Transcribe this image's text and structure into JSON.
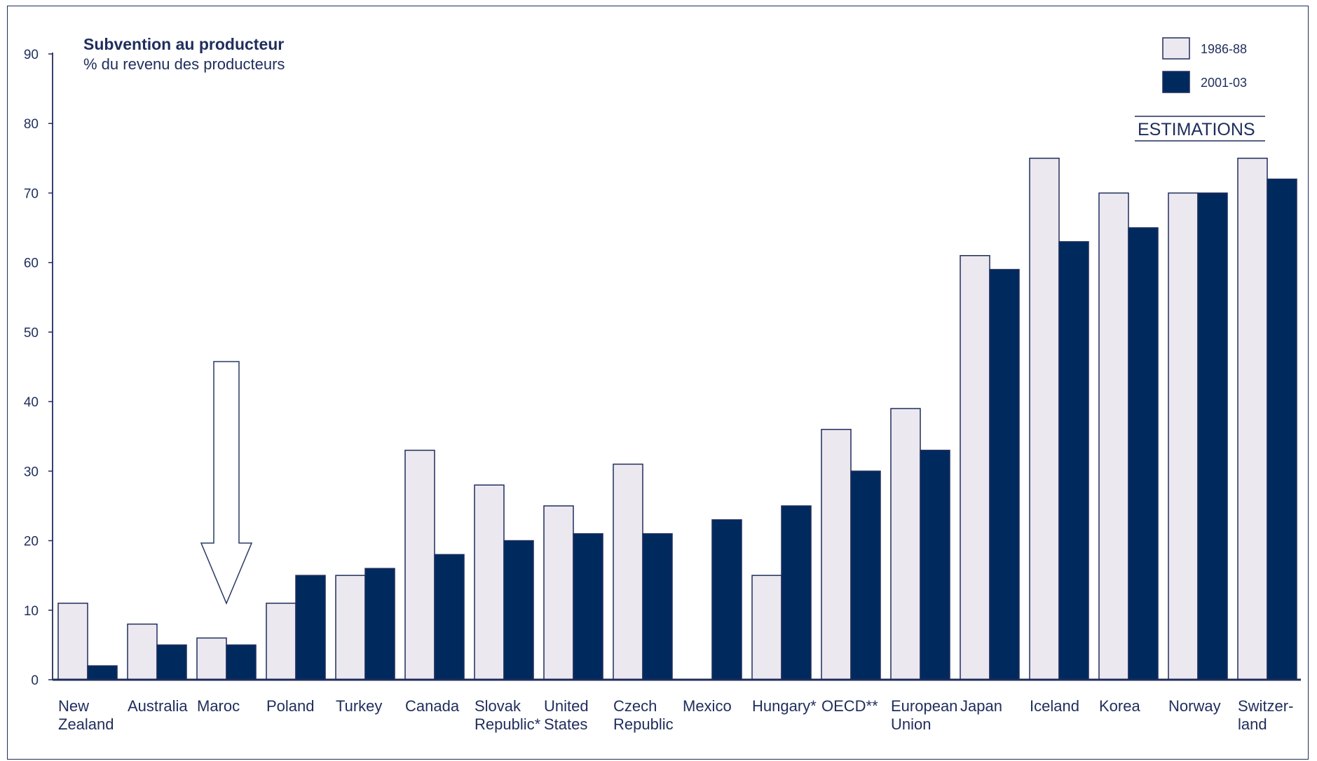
{
  "chart_data": {
    "type": "bar",
    "title": "Subvention au producteur",
    "subtitle": "% du revenu des producteurs",
    "ylim": [
      0,
      90
    ],
    "yticks": [
      "0",
      "10",
      "20",
      "30",
      "40",
      "50",
      "60",
      "70",
      "80",
      "90"
    ],
    "grid": false,
    "legend_position": "top-right",
    "categories": [
      [
        "New",
        "Zealand"
      ],
      [
        "Australia"
      ],
      [
        "Maroc"
      ],
      [
        "Poland"
      ],
      [
        "Turkey"
      ],
      [
        "Canada"
      ],
      [
        "Slovak",
        "Republic*"
      ],
      [
        "United",
        "States"
      ],
      [
        "Czech",
        "Republic"
      ],
      [
        "Mexico"
      ],
      [
        "Hungary*"
      ],
      [
        "OECD**"
      ],
      [
        "European",
        "Union"
      ],
      [
        "Japan"
      ],
      [
        "Iceland"
      ],
      [
        "Korea"
      ],
      [
        "Norway"
      ],
      [
        "Switzer-",
        "land"
      ]
    ],
    "series": [
      {
        "name": "1986-88",
        "color": "#ece8f0",
        "values": [
          11,
          8,
          6,
          11,
          15,
          33,
          28,
          25,
          31,
          null,
          15,
          36,
          39,
          61,
          75,
          70,
          70,
          75
        ]
      },
      {
        "name": "2001-03",
        "color": "#002a5e",
        "values": [
          2,
          5,
          5,
          15,
          16,
          18,
          20,
          21,
          21,
          23,
          25,
          30,
          33,
          59,
          63,
          65,
          70,
          72
        ]
      }
    ],
    "annotation": "ESTIMATIONS",
    "highlight_arrow_category": "Maroc"
  },
  "colors": {
    "axis": "#1f2d5c",
    "bar_outline": "#1f2d5c",
    "frame": "#1f2d5c"
  }
}
